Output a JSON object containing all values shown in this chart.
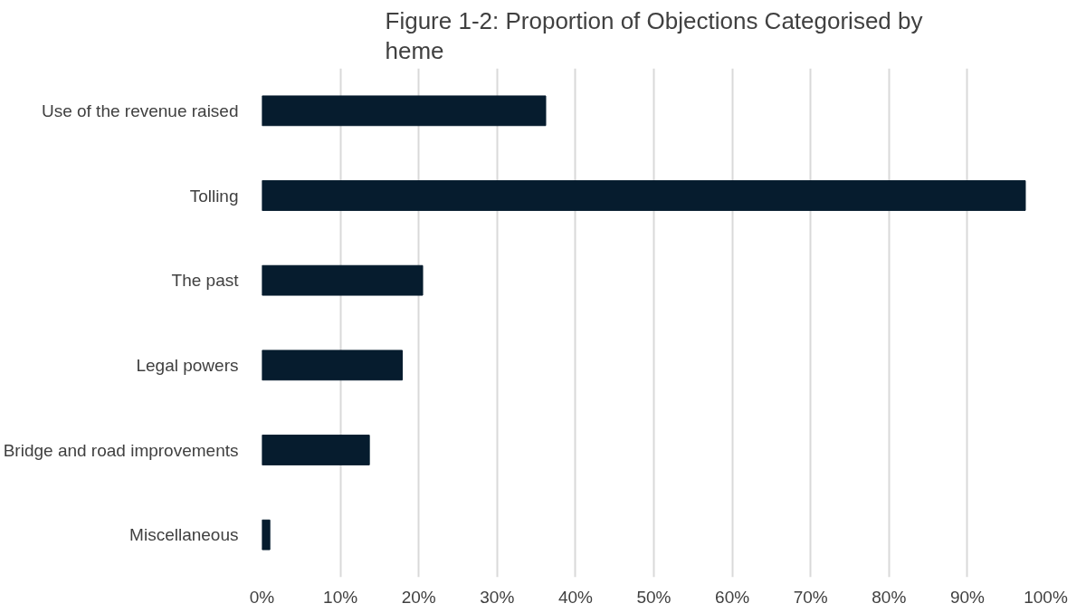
{
  "chart_data": {
    "type": "bar",
    "orientation": "horizontal",
    "title": "Figure 1-2: Proportion of Objections Categorised by\nheme",
    "categories": [
      "Use of the revenue raised",
      "Tolling",
      "The past",
      "Legal powers",
      "Bridge and road improvements",
      "Miscellaneous"
    ],
    "values": [
      36.2,
      97.4,
      20.5,
      17.9,
      13.7,
      1.0
    ],
    "color": "#061c2e",
    "xlim": [
      0,
      100
    ],
    "xticks": [
      {
        "value": 0,
        "label": "0%"
      },
      {
        "value": 10,
        "label": "10%"
      },
      {
        "value": 20,
        "label": "20%"
      },
      {
        "value": 30,
        "label": "30%"
      },
      {
        "value": 40,
        "label": "40%"
      },
      {
        "value": 50,
        "label": "50%"
      },
      {
        "value": 60,
        "label": "60%"
      },
      {
        "value": 70,
        "label": "70%"
      },
      {
        "value": 80,
        "label": "80%"
      },
      {
        "value": 90,
        "label": "90%"
      },
      {
        "value": 100,
        "label": "100%"
      }
    ],
    "grid": "x"
  }
}
